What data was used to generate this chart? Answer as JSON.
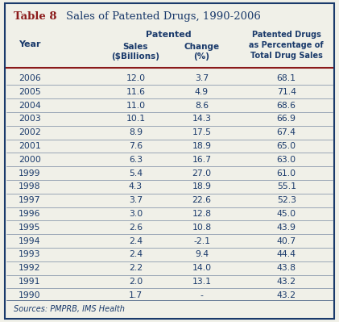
{
  "title_bold": "Table 8",
  "title_rest": "Sales of Patented Drugs, 1990-2006",
  "rows": [
    [
      "2006",
      "12.0",
      "3.7",
      "68.1"
    ],
    [
      "2005",
      "11.6",
      "4.9",
      "71.4"
    ],
    [
      "2004",
      "11.0",
      "8.6",
      "68.6"
    ],
    [
      "2003",
      "10.1",
      "14.3",
      "66.9"
    ],
    [
      "2002",
      "8.9",
      "17.5",
      "67.4"
    ],
    [
      "2001",
      "7.6",
      "18.9",
      "65.0"
    ],
    [
      "2000",
      "6.3",
      "16.7",
      "63.0"
    ],
    [
      "1999",
      "5.4",
      "27.0",
      "61.0"
    ],
    [
      "1998",
      "4.3",
      "18.9",
      "55.1"
    ],
    [
      "1997",
      "3.7",
      "22.6",
      "52.3"
    ],
    [
      "1996",
      "3.0",
      "12.8",
      "45.0"
    ],
    [
      "1995",
      "2.6",
      "10.8",
      "43.9"
    ],
    [
      "1994",
      "2.4",
      "-2.1",
      "40.7"
    ],
    [
      "1993",
      "2.4",
      "9.4",
      "44.4"
    ],
    [
      "1992",
      "2.2",
      "14.0",
      "43.8"
    ],
    [
      "1991",
      "2.0",
      "13.1",
      "43.2"
    ],
    [
      "1990",
      "1.7",
      "-",
      "43.2"
    ]
  ],
  "source_text": "Sources: PMPRB, IMS Health",
  "header_color": "#1a3a6b",
  "title_bold_color": "#8b1a1a",
  "title_rest_color": "#1a3a6b",
  "border_color": "#1a3a6b",
  "row_line_color": "#1a3a6b",
  "bg_color": "#f0f0e8",
  "header_separator_color": "#8b1a1a"
}
